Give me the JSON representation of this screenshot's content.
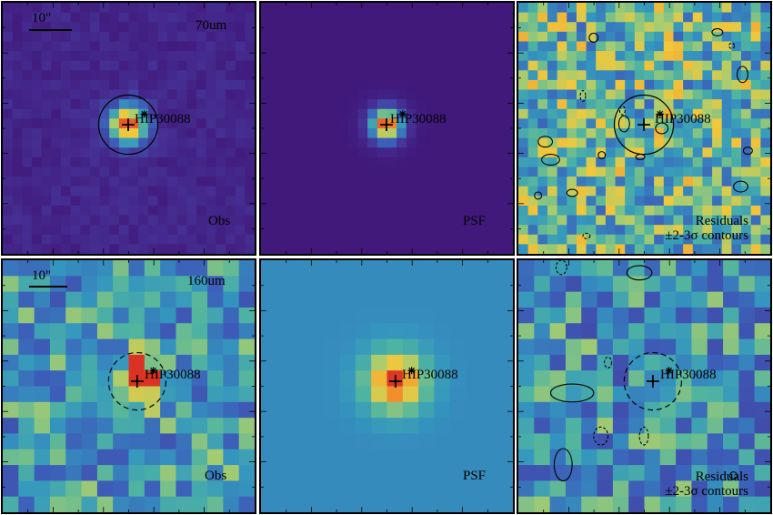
{
  "figure": {
    "target_name": "HIP30088",
    "scale_label": "10\"",
    "rows": [
      {
        "band": "70um",
        "panels": [
          "Obs",
          "PSF",
          "Residuals"
        ],
        "residual_note": "±2-3σ contours"
      },
      {
        "band": "160um",
        "panels": [
          "Obs",
          "PSF",
          "Residuals"
        ],
        "residual_note": "±2-3σ contours"
      }
    ]
  },
  "colors": {
    "background_70_obs": "#4b1e86",
    "background_70_psf": "#4a1c8a",
    "background_160_psf": "#5aa0c0",
    "peak": "#e2452a",
    "mid": "#f3c23a",
    "teal": "#3aa5a8",
    "contour": "#000000"
  }
}
